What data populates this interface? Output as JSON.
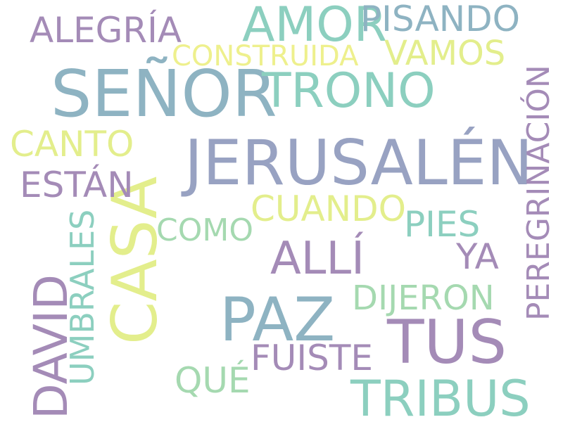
{
  "palette": {
    "purple": "#A48BB7",
    "blue": "#8EB3C2",
    "teal": "#8CCFBF",
    "green": "#A5D9B0",
    "yellow": "#E3EE8C",
    "yellowlight": "#EEF08D",
    "slate": "#98A2C2"
  },
  "words": [
    {
      "id": "w-senor",
      "text": "SEÑOR",
      "color": "blue",
      "orientation": "horizontal"
    },
    {
      "id": "w-jerusalen",
      "text": "JERUSALÉN",
      "color": "slate",
      "orientation": "horizontal"
    },
    {
      "id": "w-casa",
      "text": "CASA",
      "color": "yellow",
      "orientation": "vertical"
    },
    {
      "id": "w-paz",
      "text": "PAZ",
      "color": "blue",
      "orientation": "horizontal"
    },
    {
      "id": "w-tus",
      "text": "TUS",
      "color": "purple",
      "orientation": "horizontal"
    },
    {
      "id": "w-david",
      "text": "DAVID",
      "color": "purple",
      "orientation": "vertical"
    },
    {
      "id": "w-tribus",
      "text": "TRIBUS",
      "color": "teal",
      "orientation": "horizontal"
    },
    {
      "id": "w-amor",
      "text": "AMOR",
      "color": "teal",
      "orientation": "horizontal"
    },
    {
      "id": "w-trono",
      "text": "TRONO",
      "color": "teal",
      "orientation": "horizontal"
    },
    {
      "id": "w-peregrinacion",
      "text": "PEREGRINACIÓN",
      "color": "purple",
      "orientation": "vertical"
    },
    {
      "id": "w-alli",
      "text": "ALLÍ",
      "color": "purple",
      "orientation": "horizontal"
    },
    {
      "id": "w-alegria",
      "text": "ALEGRÍA",
      "color": "purple",
      "orientation": "horizontal"
    },
    {
      "id": "w-pisando",
      "text": "PISANDO",
      "color": "blue",
      "orientation": "horizontal"
    },
    {
      "id": "w-construida",
      "text": "CONSTRUIDA",
      "color": "yellowlight",
      "orientation": "horizontal"
    },
    {
      "id": "w-vamos",
      "text": "VAMOS",
      "color": "yellow",
      "orientation": "horizontal"
    },
    {
      "id": "w-canto",
      "text": "CANTO",
      "color": "yellow",
      "orientation": "horizontal"
    },
    {
      "id": "w-estan",
      "text": "ESTÁN",
      "color": "purple",
      "orientation": "horizontal"
    },
    {
      "id": "w-umbrales",
      "text": "UMBRALES",
      "color": "teal",
      "orientation": "vertical"
    },
    {
      "id": "w-cuando",
      "text": "CUANDO",
      "color": "yellow",
      "orientation": "horizontal"
    },
    {
      "id": "w-como",
      "text": "COMO",
      "color": "green",
      "orientation": "horizontal"
    },
    {
      "id": "w-pies",
      "text": "PIES",
      "color": "teal",
      "orientation": "horizontal"
    },
    {
      "id": "w-ya",
      "text": "YA",
      "color": "purple",
      "orientation": "horizontal"
    },
    {
      "id": "w-dijeron",
      "text": "DIJERON",
      "color": "green",
      "orientation": "horizontal"
    },
    {
      "id": "w-fuiste",
      "text": "FUISTE",
      "color": "purple",
      "orientation": "horizontal"
    },
    {
      "id": "w-que",
      "text": "QUÉ",
      "color": "green",
      "orientation": "horizontal"
    }
  ]
}
